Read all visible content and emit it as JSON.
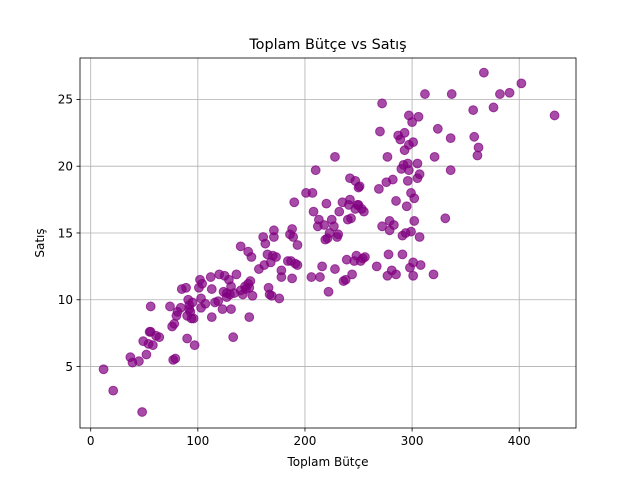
{
  "chart_data": {
    "type": "scatter",
    "title": "Toplam Bütçe vs Satış",
    "xlabel": "Toplam Bütçe",
    "ylabel": "Satış",
    "xlim": [
      -10,
      453
    ],
    "ylim": [
      0.4,
      28.1
    ],
    "xticks": [
      0,
      100,
      200,
      300,
      400
    ],
    "yticks": [
      5,
      10,
      15,
      20,
      25
    ],
    "xtick_labels": [
      "0",
      "100",
      "200",
      "300",
      "400"
    ],
    "ytick_labels": [
      "5",
      "10",
      "15",
      "20",
      "25"
    ],
    "grid": true,
    "colors": {
      "point": "#800080",
      "grid": "#b0b0b0",
      "axes": "#000000"
    },
    "alpha": 0.7,
    "points": [
      [
        12,
        4.8
      ],
      [
        21,
        3.2
      ],
      [
        37,
        5.7
      ],
      [
        39,
        5.3
      ],
      [
        45,
        5.4
      ],
      [
        48,
        1.6
      ],
      [
        49,
        6.9
      ],
      [
        52,
        5.9
      ],
      [
        54,
        6.7
      ],
      [
        55,
        7.6
      ],
      [
        56,
        7.6
      ],
      [
        56,
        9.5
      ],
      [
        58,
        6.6
      ],
      [
        61,
        7.3
      ],
      [
        64,
        7.2
      ],
      [
        74,
        9.5
      ],
      [
        76,
        8.0
      ],
      [
        77,
        5.5
      ],
      [
        78,
        8.2
      ],
      [
        79,
        5.6
      ],
      [
        80,
        8.8
      ],
      [
        81,
        9.1
      ],
      [
        84,
        9.4
      ],
      [
        85,
        10.8
      ],
      [
        89,
        10.9
      ],
      [
        90,
        8.8
      ],
      [
        90,
        7.1
      ],
      [
        91,
        10.0
      ],
      [
        92,
        9.6
      ],
      [
        92,
        9.3
      ],
      [
        93,
        9.1
      ],
      [
        94,
        8.6
      ],
      [
        95,
        9.8
      ],
      [
        96,
        8.6
      ],
      [
        97,
        6.6
      ],
      [
        101,
        10.9
      ],
      [
        102,
        11.5
      ],
      [
        103,
        10.1
      ],
      [
        103,
        9.4
      ],
      [
        104,
        11.2
      ],
      [
        107,
        9.7
      ],
      [
        112,
        11.7
      ],
      [
        113,
        8.7
      ],
      [
        113,
        10.8
      ],
      [
        116,
        9.8
      ],
      [
        119,
        9.9
      ],
      [
        120,
        11.9
      ],
      [
        123,
        9.3
      ],
      [
        124,
        10.6
      ],
      [
        125,
        11.8
      ],
      [
        127,
        10.2
      ],
      [
        127,
        10.5
      ],
      [
        129,
        11.5
      ],
      [
        130,
        10.4
      ],
      [
        131,
        11.0
      ],
      [
        131,
        9.3
      ],
      [
        133,
        7.2
      ],
      [
        134,
        10.5
      ],
      [
        136,
        11.9
      ],
      [
        140,
        10.7
      ],
      [
        140,
        14.0
      ],
      [
        142,
        10.4
      ],
      [
        144,
        11.0
      ],
      [
        145,
        10.8
      ],
      [
        147,
        13.6
      ],
      [
        147,
        11.2
      ],
      [
        148,
        8.7
      ],
      [
        148,
        10.9
      ],
      [
        149,
        11.4
      ],
      [
        150,
        13.2
      ],
      [
        151,
        10.3
      ],
      [
        157,
        12.3
      ],
      [
        161,
        14.7
      ],
      [
        162,
        12.6
      ],
      [
        163,
        14.2
      ],
      [
        165,
        13.4
      ],
      [
        166,
        10.9
      ],
      [
        167,
        10.4
      ],
      [
        168,
        12.8
      ],
      [
        169,
        10.3
      ],
      [
        170,
        13.3
      ],
      [
        171,
        14.7
      ],
      [
        171,
        15.2
      ],
      [
        173,
        13.2
      ],
      [
        176,
        10.1
      ],
      [
        178,
        11.7
      ],
      [
        178,
        12.2
      ],
      [
        184,
        12.9
      ],
      [
        186,
        14.9
      ],
      [
        187,
        12.9
      ],
      [
        188,
        15.3
      ],
      [
        188,
        11.6
      ],
      [
        189,
        14.7
      ],
      [
        190,
        17.3
      ],
      [
        191,
        12.7
      ],
      [
        193,
        14.1
      ],
      [
        193,
        12.6
      ],
      [
        201,
        18.0
      ],
      [
        206,
        11.7
      ],
      [
        207,
        18.0
      ],
      [
        208,
        16.6
      ],
      [
        210,
        19.7
      ],
      [
        212,
        15.5
      ],
      [
        213,
        16.0
      ],
      [
        214,
        11.7
      ],
      [
        216,
        12.5
      ],
      [
        218,
        15.6
      ],
      [
        219,
        14.5
      ],
      [
        220,
        17.2
      ],
      [
        221,
        14.6
      ],
      [
        222,
        10.6
      ],
      [
        223,
        15.0
      ],
      [
        225,
        16.0
      ],
      [
        227,
        15.5
      ],
      [
        228,
        12.3
      ],
      [
        228,
        20.7
      ],
      [
        230,
        14.7
      ],
      [
        231,
        14.9
      ],
      [
        232,
        16.6
      ],
      [
        235,
        17.3
      ],
      [
        236,
        11.4
      ],
      [
        238,
        11.5
      ],
      [
        239,
        13.0
      ],
      [
        240,
        16.0
      ],
      [
        241,
        17.1
      ],
      [
        242,
        17.5
      ],
      [
        242,
        19.1
      ],
      [
        243,
        16.1
      ],
      [
        244,
        11.9
      ],
      [
        246,
        12.9
      ],
      [
        247,
        16.8
      ],
      [
        247,
        18.9
      ],
      [
        248,
        13.3
      ],
      [
        249,
        17.1
      ],
      [
        250,
        18.4
      ],
      [
        250,
        17.1
      ],
      [
        251,
        18.5
      ],
      [
        252,
        12.9
      ],
      [
        253,
        16.8
      ],
      [
        254,
        13.1
      ],
      [
        255,
        16.6
      ],
      [
        256,
        13.2
      ],
      [
        267,
        12.5
      ],
      [
        269,
        18.3
      ],
      [
        270,
        22.6
      ],
      [
        272,
        15.5
      ],
      [
        272,
        24.7
      ],
      [
        276,
        18.8
      ],
      [
        277,
        11.8
      ],
      [
        277,
        20.7
      ],
      [
        278,
        13.4
      ],
      [
        279,
        15.2
      ],
      [
        279,
        15.9
      ],
      [
        281,
        12.2
      ],
      [
        282,
        19.0
      ],
      [
        283,
        15.6
      ],
      [
        285,
        11.9
      ],
      [
        285,
        17.4
      ],
      [
        287,
        22.3
      ],
      [
        289,
        22.0
      ],
      [
        290,
        19.8
      ],
      [
        291,
        13.4
      ],
      [
        291,
        14.8
      ],
      [
        292,
        20.1
      ],
      [
        293,
        21.2
      ],
      [
        293,
        22.5
      ],
      [
        294,
        15.0
      ],
      [
        295,
        17.0
      ],
      [
        296,
        20.2
      ],
      [
        296,
        18.9
      ],
      [
        297,
        23.8
      ],
      [
        297,
        21.6
      ],
      [
        297,
        19.7
      ],
      [
        298,
        12.4
      ],
      [
        299,
        15.1
      ],
      [
        299,
        18.0
      ],
      [
        300,
        23.3
      ],
      [
        301,
        11.8
      ],
      [
        301,
        12.8
      ],
      [
        301,
        21.8
      ],
      [
        302,
        15.9
      ],
      [
        302,
        17.6
      ],
      [
        305,
        19.1
      ],
      [
        305,
        20.2
      ],
      [
        306,
        23.7
      ],
      [
        307,
        14.7
      ],
      [
        307,
        19.4
      ],
      [
        308,
        12.6
      ],
      [
        312,
        25.4
      ],
      [
        320,
        11.9
      ],
      [
        321,
        20.7
      ],
      [
        324,
        22.8
      ],
      [
        331,
        16.1
      ],
      [
        336,
        22.1
      ],
      [
        336,
        19.7
      ],
      [
        337,
        25.4
      ],
      [
        357,
        24.2
      ],
      [
        358,
        22.2
      ],
      [
        361,
        20.8
      ],
      [
        362,
        21.4
      ],
      [
        367,
        27.0
      ],
      [
        376,
        24.4
      ],
      [
        382,
        25.4
      ],
      [
        391,
        25.5
      ],
      [
        402,
        26.2
      ],
      [
        433,
        23.8
      ]
    ]
  }
}
